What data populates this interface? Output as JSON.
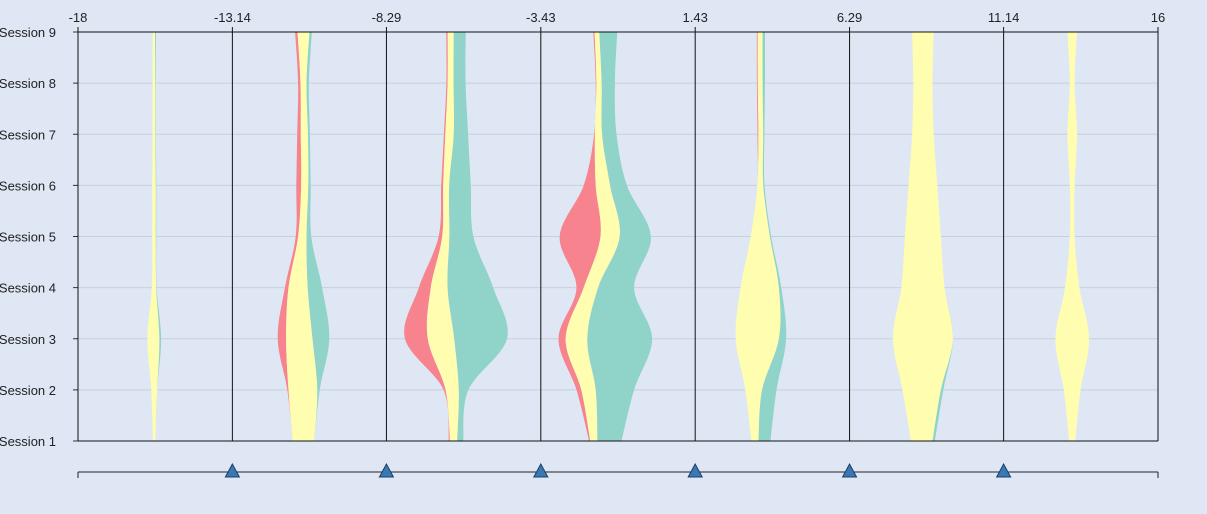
{
  "chart_data": {
    "type": "area",
    "title": "",
    "xlabel": "",
    "ylabel": "",
    "x_ticks": [
      "-18",
      "-13.14",
      "-8.29",
      "-3.43",
      "1.43",
      "6.29",
      "11.14",
      "16"
    ],
    "xlim": [
      -18,
      16
    ],
    "y_categories": [
      "Session 1",
      "Session 2",
      "Session 3",
      "Session 4",
      "Session 5",
      "Session 6",
      "Session 7",
      "Session 8",
      "Session 9"
    ],
    "bins": [
      -18,
      -13.14,
      -8.29,
      -3.43,
      1.43,
      6.29,
      11.14,
      16
    ],
    "series": [
      {
        "color": "#f7838f"
      },
      {
        "color": "#fffdb0"
      },
      {
        "color": "#90d4c9"
      }
    ],
    "columns": [
      {
        "center": -15.6,
        "sessions": [
          [
            0,
            0.1,
            0
          ],
          [
            0,
            0.25,
            0
          ],
          [
            0,
            0.5,
            0.07
          ],
          [
            0,
            0.18,
            0.02
          ],
          [
            0,
            0.15,
            0.02
          ],
          [
            0,
            0.15,
            0.02
          ],
          [
            0,
            0.12,
            0.02
          ],
          [
            0,
            0.12,
            0.02
          ],
          [
            0,
            0.1,
            0.04
          ]
        ]
      },
      {
        "center": -10.9,
        "sessions": [
          [
            0,
            0.9,
            0
          ],
          [
            0.05,
            1.2,
            0.1
          ],
          [
            0.35,
            1.1,
            0.7
          ],
          [
            0.15,
            0.8,
            0.6
          ],
          [
            0.1,
            0.35,
            0.2
          ],
          [
            0.2,
            0.3,
            0.1
          ],
          [
            0.15,
            0.3,
            0.08
          ],
          [
            0.1,
            0.25,
            0.1
          ],
          [
            0.1,
            0.5,
            0.1
          ]
        ]
      },
      {
        "center": -6.1,
        "sessions": [
          [
            0.05,
            0.3,
            0.25
          ],
          [
            0.08,
            0.55,
            0.4
          ],
          [
            0.95,
            1.1,
            2.2
          ],
          [
            0.5,
            0.7,
            1.9
          ],
          [
            0.15,
            0.3,
            1.0
          ],
          [
            0.08,
            0.25,
            0.9
          ],
          [
            0.06,
            0.35,
            0.6
          ],
          [
            0.05,
            0.25,
            0.5
          ],
          [
            0.06,
            0.25,
            0.5
          ]
        ]
      },
      {
        "center": -1.4,
        "sessions": [
          [
            0.05,
            0.3,
            1.0
          ],
          [
            0.2,
            0.6,
            1.6
          ],
          [
            0.3,
            0.9,
            2.7
          ],
          [
            0.3,
            0.6,
            1.5
          ],
          [
            1.7,
            0.8,
            1.3
          ],
          [
            0.5,
            0.6,
            0.7
          ],
          [
            0.03,
            0.3,
            0.6
          ],
          [
            0.03,
            0.22,
            0.55
          ],
          [
            0.05,
            0.2,
            0.75
          ]
        ]
      },
      {
        "center": 3.5,
        "sessions": [
          [
            0,
            0.3,
            0.5
          ],
          [
            0,
            0.7,
            0.6
          ],
          [
            0,
            1.8,
            0.3
          ],
          [
            0,
            1.6,
            0.1
          ],
          [
            0,
            0.8,
            0.05
          ],
          [
            0,
            0.25,
            0.05
          ],
          [
            0.04,
            0.2,
            0.05
          ],
          [
            0.04,
            0.2,
            0.1
          ],
          [
            0.04,
            0.2,
            0.1
          ]
        ]
      },
      {
        "center": 8.6,
        "sessions": [
          [
            0,
            0.9,
            0.1
          ],
          [
            0,
            1.6,
            0.1
          ],
          [
            0,
            2.5,
            0
          ],
          [
            0,
            1.8,
            0
          ],
          [
            0,
            1.5,
            0
          ],
          [
            0,
            1.2,
            0
          ],
          [
            0,
            0.9,
            0
          ],
          [
            0,
            0.8,
            0
          ],
          [
            0,
            0.9,
            0
          ]
        ]
      },
      {
        "center": 13.3,
        "sessions": [
          [
            0,
            0.25,
            0
          ],
          [
            0,
            0.7,
            0
          ],
          [
            0,
            1.4,
            0
          ],
          [
            0,
            0.6,
            0
          ],
          [
            0,
            0.2,
            0
          ],
          [
            0,
            0.2,
            0
          ],
          [
            0,
            0.4,
            0
          ],
          [
            0,
            0.2,
            0
          ],
          [
            0,
            0.4,
            0
          ]
        ]
      }
    ],
    "grid": true,
    "legend": "none"
  }
}
